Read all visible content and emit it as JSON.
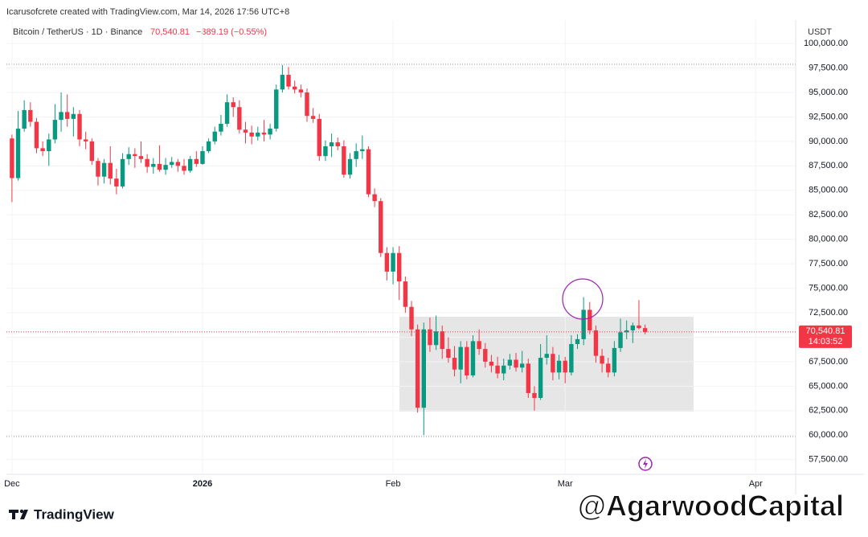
{
  "header": {
    "credit": "Icarusofcrete created with TradingView.com, Mar 14, 2026 17:56 UTC+8",
    "symbol": "Bitcoin / TetherUS · 1D · Binance",
    "price": "70,540.81",
    "change": "−389.19 (−0.55%)",
    "currency": "USDT"
  },
  "footer": {
    "logo": "TradingView",
    "watermark": "@AgarwoodCapital"
  },
  "chart_data": {
    "type": "candlestick",
    "up_color": "#089981",
    "down_color": "#f23645",
    "grid": true,
    "open": [
      90300,
      86250,
      91300,
      93200,
      92000,
      89300,
      89000,
      90200,
      92200,
      93000,
      92300,
      92800,
      90200,
      90000,
      88000,
      86400,
      87800,
      86200,
      85400,
      88200,
      88700,
      88500,
      88200,
      87400,
      87700,
      87100,
      87600,
      87900,
      87500,
      87000,
      88200,
      87700,
      89000,
      90000,
      91000,
      91800,
      94000,
      93500,
      91200,
      90900,
      90500,
      90900,
      90700,
      91300,
      95300,
      96800,
      95600,
      95300,
      95000,
      92600,
      92300,
      88500,
      89500,
      89900,
      89500,
      86600,
      88200,
      89000,
      89200,
      84600,
      83900,
      78600,
      76700,
      78600,
      75700,
      73100,
      70800,
      62800,
      70800,
      69200,
      70600,
      68800,
      67900,
      66700,
      69000,
      66100,
      69600,
      68800,
      67500,
      67100,
      66300,
      67100,
      67700,
      66900,
      67300,
      64300,
      63800,
      67900,
      68300,
      66400,
      67600,
      66400,
      69300,
      69800,
      72800,
      70700,
      68100,
      67300,
      66400,
      68900,
      70500,
      70700,
      71200,
      70930
    ],
    "high": [
      90700,
      93100,
      94200,
      94000,
      92400,
      90000,
      90800,
      93800,
      95000,
      94800,
      93500,
      93200,
      91000,
      90300,
      88300,
      88200,
      89500,
      87200,
      88800,
      89400,
      89300,
      90000,
      88700,
      88300,
      89600,
      88300,
      88400,
      88200,
      88200,
      88500,
      89000,
      89500,
      90300,
      91500,
      92700,
      94800,
      94500,
      94200,
      92000,
      91600,
      91500,
      92200,
      91800,
      95800,
      97800,
      97600,
      96200,
      95800,
      95400,
      93400,
      92800,
      90100,
      90800,
      90400,
      90100,
      88800,
      89800,
      90600,
      89500,
      85200,
      84200,
      79200,
      79200,
      79300,
      76200,
      73700,
      71300,
      71500,
      72000,
      72200,
      71200,
      70000,
      69100,
      69600,
      69600,
      70200,
      70800,
      69400,
      68200,
      68000,
      67800,
      68300,
      68400,
      68600,
      67800,
      65000,
      69300,
      70200,
      69000,
      68200,
      68000,
      70200,
      70300,
      74100,
      73600,
      71200,
      68800,
      67900,
      69600,
      71900,
      71700,
      71500,
      73800,
      71300
    ],
    "low": [
      83800,
      86000,
      91000,
      91500,
      88800,
      88500,
      87500,
      89800,
      91000,
      91500,
      90500,
      89500,
      89200,
      87600,
      85500,
      85700,
      85600,
      84600,
      85200,
      87600,
      87300,
      87800,
      86800,
      86700,
      86900,
      86600,
      87300,
      86900,
      86600,
      86800,
      87400,
      87600,
      88800,
      89700,
      90600,
      91500,
      92500,
      90800,
      89800,
      89700,
      90100,
      90000,
      90200,
      91000,
      95000,
      95300,
      94900,
      94500,
      92000,
      91900,
      88000,
      88000,
      88400,
      89100,
      86300,
      86200,
      87400,
      88200,
      84300,
      83300,
      78200,
      75800,
      75400,
      73800,
      72500,
      70100,
      62300,
      60000,
      68500,
      68700,
      67800,
      67400,
      66000,
      65300,
      65700,
      65900,
      68200,
      66900,
      66400,
      65800,
      65600,
      66700,
      66500,
      66400,
      63800,
      62500,
      63600,
      67200,
      65600,
      65700,
      65300,
      66100,
      68800,
      69200,
      70300,
      67400,
      66400,
      65900,
      66000,
      68500,
      69800,
      69400,
      70800,
      70300
    ],
    "close": [
      86250,
      91300,
      93200,
      92000,
      89300,
      89000,
      90200,
      92200,
      93000,
      92300,
      92800,
      90200,
      90000,
      88000,
      86400,
      87800,
      86200,
      85400,
      88200,
      88700,
      88500,
      88200,
      87400,
      87700,
      87100,
      87600,
      87900,
      87500,
      87000,
      88200,
      87700,
      89000,
      90000,
      91000,
      91800,
      94000,
      93500,
      91200,
      90900,
      90500,
      90900,
      90700,
      91300,
      95300,
      96800,
      95600,
      95300,
      95000,
      92600,
      92300,
      88500,
      89500,
      89900,
      89500,
      86600,
      88200,
      89000,
      89200,
      84600,
      83900,
      78600,
      76700,
      78600,
      75700,
      73100,
      70800,
      62800,
      70800,
      69200,
      70600,
      68800,
      67900,
      66700,
      69000,
      66100,
      69600,
      68800,
      67500,
      67100,
      66300,
      67100,
      67700,
      66900,
      67300,
      64300,
      63800,
      67900,
      68300,
      66400,
      67600,
      66400,
      69300,
      69800,
      72800,
      70700,
      68100,
      67300,
      66400,
      68900,
      70500,
      70700,
      71200,
      70930,
      70540.81
    ],
    "xlim": [
      -0.9,
      127.5
    ],
    "xticks": [
      {
        "value": 0,
        "label": "Dec"
      },
      {
        "value": 31,
        "label": "2026"
      },
      {
        "value": 62,
        "label": "Feb"
      },
      {
        "value": 90,
        "label": "Mar"
      },
      {
        "value": 121,
        "label": "Apr"
      }
    ],
    "ylim": [
      56000,
      100500
    ],
    "yticks": [
      {
        "value": 57500,
        "label": "57,500.00"
      },
      {
        "value": 60000,
        "label": "60,000.00"
      },
      {
        "value": 62500,
        "label": "62,500.00"
      },
      {
        "value": 65000,
        "label": "65,000.00"
      },
      {
        "value": 67500,
        "label": "67,500.00"
      },
      {
        "value": 70000,
        "label": "70,000.00"
      },
      {
        "value": 72500,
        "label": "72,500.00"
      },
      {
        "value": 75000,
        "label": "75,000.00"
      },
      {
        "value": 77500,
        "label": "77,500.00"
      },
      {
        "value": 80000,
        "label": "80,000.00"
      },
      {
        "value": 82500,
        "label": "82,500.00"
      },
      {
        "value": 85000,
        "label": "85,000.00"
      },
      {
        "value": 87500,
        "label": "87,500.00"
      },
      {
        "value": 90000,
        "label": "90,000.00"
      },
      {
        "value": 92500,
        "label": "92,500.00"
      },
      {
        "value": 95000,
        "label": "95,000.00"
      },
      {
        "value": 97500,
        "label": "97,500.00"
      },
      {
        "value": 100000,
        "label": "100,000.00"
      }
    ],
    "last_price": {
      "value": 70540.81,
      "label": "70,540.81"
    },
    "countdown": "14:03:52"
  }
}
